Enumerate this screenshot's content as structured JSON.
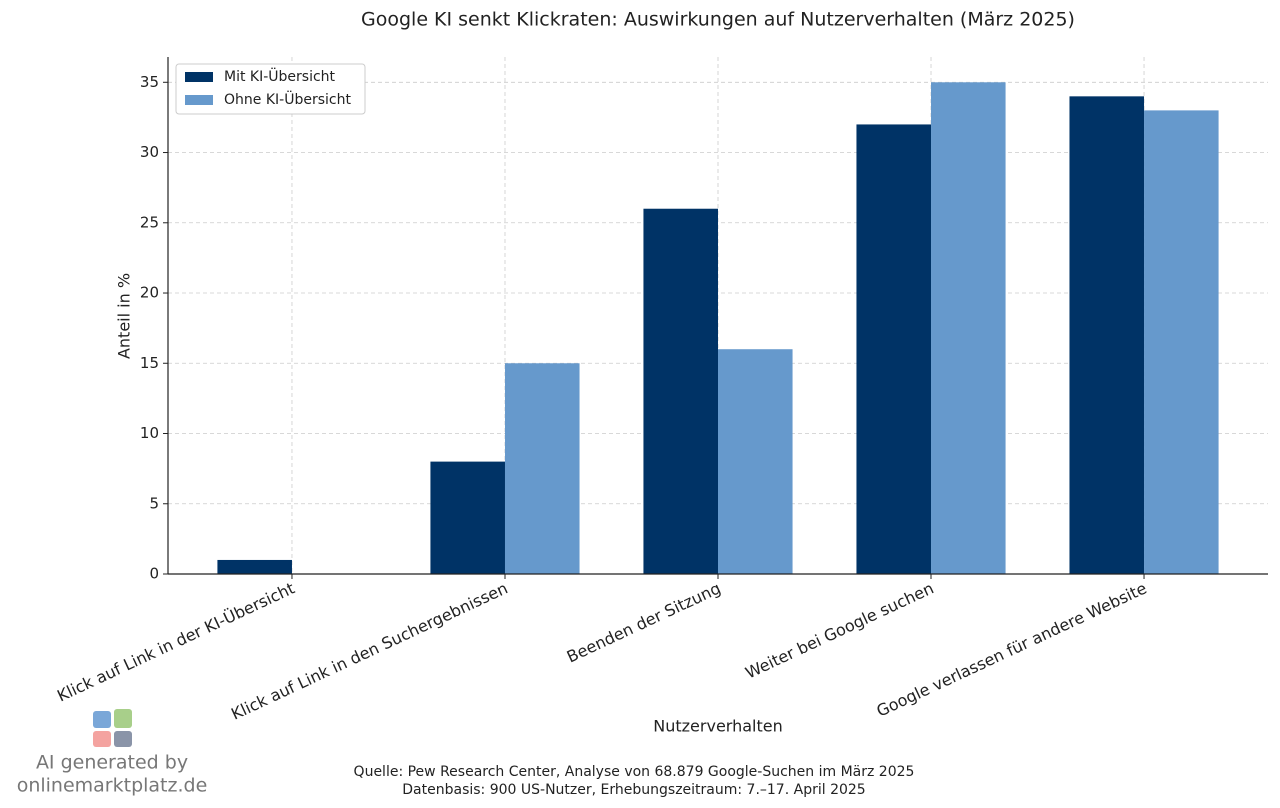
{
  "chart_data": {
    "type": "bar",
    "title": "Google KI senkt Klickraten: Auswirkungen auf Nutzerverhalten (März 2025)",
    "x_label": "Nutzerverhalten",
    "y_label": "Anteil in %",
    "categories": [
      "Klick auf Link in der KI-Übersicht",
      "Klick auf Link in den Suchergebnissen",
      "Beenden der Sitzung",
      "Weiter bei Google suchen",
      "Google verlassen für andere Website"
    ],
    "series": [
      {
        "name": "Mit KI-Übersicht",
        "color": "#003366",
        "values": [
          1,
          8,
          26,
          32,
          34
        ]
      },
      {
        "name": "Ohne KI-Übersicht",
        "color": "#6699cc",
        "values": [
          0,
          15,
          16,
          35,
          33
        ]
      }
    ],
    "ylim": [
      0,
      36.8
    ],
    "yticks": [
      0,
      5,
      10,
      15,
      20,
      25,
      30,
      35
    ],
    "grid": true,
    "legend": "upper left",
    "source": [
      "Quelle: Pew Research Center, Analyse von 68.879 Google-Suchen im März 2025",
      "Datenbasis: 900 US-Nutzer, Erhebungszeitraum: 7.–17. April 2025"
    ],
    "watermark": [
      "AI generated by",
      "onlinemarktplatz.de"
    ]
  }
}
